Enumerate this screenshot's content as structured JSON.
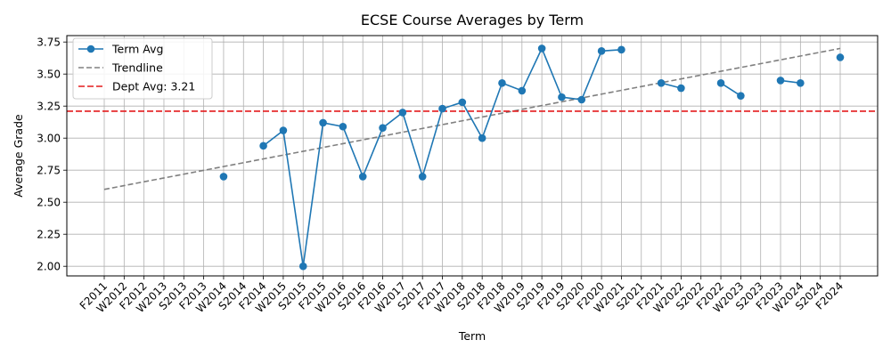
{
  "chart_data": {
    "type": "line",
    "title": "ECSE Course Averages by Term",
    "xlabel": "Term",
    "ylabel": "Average Grade",
    "ylim": [
      1.925,
      3.8
    ],
    "yticks": [
      2.0,
      2.25,
      2.5,
      2.75,
      3.0,
      3.25,
      3.5,
      3.75
    ],
    "ytick_labels": [
      "2.00",
      "2.25",
      "2.50",
      "2.75",
      "3.00",
      "3.25",
      "3.50",
      "3.75"
    ],
    "grid": true,
    "legend_position": "top-left",
    "categories": [
      "F2011",
      "W2012",
      "F2012",
      "W2013",
      "S2013",
      "F2013",
      "W2014",
      "S2014",
      "F2014",
      "W2015",
      "S2015",
      "F2015",
      "W2016",
      "S2016",
      "F2016",
      "W2017",
      "S2017",
      "F2017",
      "W2018",
      "S2018",
      "F2018",
      "W2019",
      "S2019",
      "F2019",
      "S2020",
      "F2020",
      "W2021",
      "S2021",
      "F2021",
      "W2022",
      "S2022",
      "F2022",
      "W2023",
      "S2023",
      "F2023",
      "W2024",
      "S2024",
      "F2024"
    ],
    "series": [
      {
        "name": "Term Avg",
        "kind": "line-markers",
        "color": "#1f77b4",
        "values": [
          null,
          null,
          null,
          null,
          null,
          null,
          2.7,
          null,
          2.94,
          3.06,
          2.0,
          3.12,
          3.09,
          2.7,
          3.08,
          3.2,
          2.7,
          3.23,
          3.28,
          3.0,
          3.43,
          3.37,
          3.7,
          3.32,
          3.3,
          3.68,
          3.69,
          null,
          3.43,
          3.39,
          null,
          3.43,
          3.33,
          null,
          3.45,
          3.43,
          null,
          3.63
        ]
      },
      {
        "name": "Trendline",
        "kind": "dashed-line",
        "color": "#808080",
        "from": {
          "category": "F2011",
          "y": 2.6
        },
        "to": {
          "category": "F2024",
          "y": 3.7
        }
      },
      {
        "name": "Dept Avg: 3.21",
        "kind": "horizontal-line",
        "color": "#e41a1c",
        "y": 3.21
      }
    ]
  }
}
